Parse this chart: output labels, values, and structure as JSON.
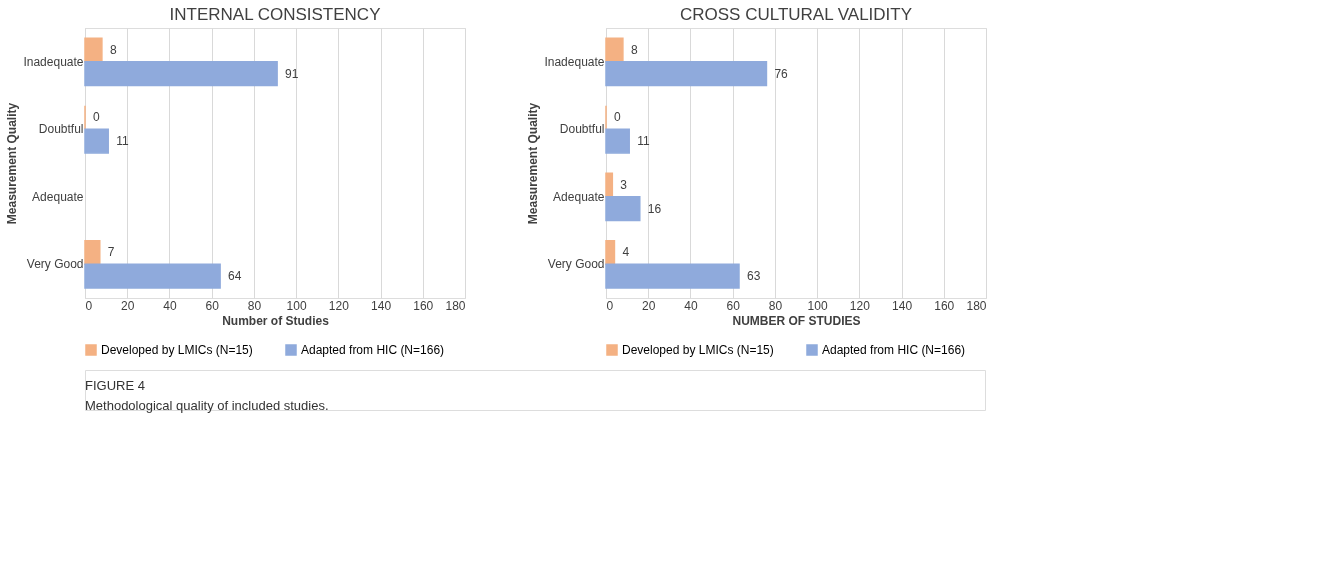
{
  "chart_data": [
    {
      "type": "bar",
      "orientation": "horizontal",
      "title": "INTERNAL CONSISTENCY",
      "xlabel": "Number of Studies",
      "ylabel": "Measurement Quality",
      "categories": [
        "Inadequate",
        "Doubtful",
        "Adequate",
        "Very Good"
      ],
      "series": [
        {
          "name": "Developed by LMICs (N=15)",
          "color": "#f4b183",
          "values": [
            8,
            0,
            null,
            7
          ]
        },
        {
          "name": "Adapted from HIC (N=166)",
          "color": "#8faadc",
          "values": [
            91,
            11,
            null,
            64
          ]
        }
      ],
      "xlim": [
        0,
        180
      ],
      "xticks": [
        0,
        20,
        40,
        60,
        80,
        100,
        120,
        140,
        160,
        180
      ],
      "grid": "x",
      "legend": "bottom",
      "data_labels": true
    },
    {
      "type": "bar",
      "orientation": "horizontal",
      "title": "CROSS CULTURAL VALIDITY",
      "xlabel": "NUMBER OF STUDIES",
      "ylabel": "Measurement Quality",
      "categories": [
        "Inadequate",
        "Doubtful",
        "Adequate",
        "Very Good"
      ],
      "series": [
        {
          "name": "Developed by LMICs (N=15)",
          "color": "#f4b183",
          "values": [
            8,
            0,
            3,
            4
          ]
        },
        {
          "name": "Adapted from HIC (N=166)",
          "color": "#8faadc",
          "values": [
            76,
            11,
            16,
            63
          ]
        }
      ],
      "xlim": [
        0,
        180
      ],
      "xticks": [
        0,
        20,
        40,
        60,
        80,
        100,
        120,
        140,
        160,
        180
      ],
      "grid": "x",
      "legend": "bottom",
      "data_labels": true,
      "annotations": [
        "FIGURE 4",
        "Methodological quality of included studies."
      ]
    }
  ]
}
